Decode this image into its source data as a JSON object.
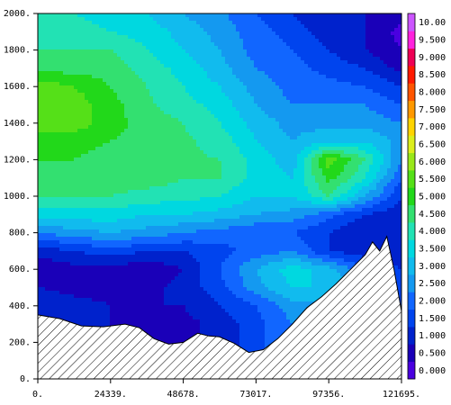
{
  "chart_data": {
    "type": "heatmap",
    "title": "",
    "xlabel": "",
    "ylabel": "",
    "xlim": [
      0,
      121695
    ],
    "ylim": [
      0,
      2000
    ],
    "x_ticks": [
      {
        "value": 0,
        "label": "0."
      },
      {
        "value": 24339,
        "label": "24339."
      },
      {
        "value": 48678,
        "label": "48678."
      },
      {
        "value": 73017,
        "label": "73017."
      },
      {
        "value": 97356,
        "label": "97356."
      },
      {
        "value": 121695,
        "label": "121695."
      }
    ],
    "y_ticks": [
      {
        "value": 0,
        "label": "0."
      },
      {
        "value": 200,
        "label": "200."
      },
      {
        "value": 400,
        "label": "400."
      },
      {
        "value": 600,
        "label": "600."
      },
      {
        "value": 800,
        "label": "800."
      },
      {
        "value": 1000,
        "label": "1000."
      },
      {
        "value": 1200,
        "label": "1200."
      },
      {
        "value": 1400,
        "label": "1400."
      },
      {
        "value": 1600,
        "label": "1600."
      },
      {
        "value": 1800,
        "label": "1800."
      },
      {
        "value": 2000,
        "label": "2000."
      }
    ],
    "colorbar": {
      "levels": [
        "0.000",
        "0.500",
        "1.000",
        "1.500",
        "2.000",
        "2.500",
        "3.000",
        "3.500",
        "4.000",
        "4.500",
        "5.000",
        "5.500",
        "6.000",
        "6.500",
        "7.000",
        "7.500",
        "8.000",
        "8.500",
        "9.000",
        "9.500",
        "10.00"
      ],
      "colors": [
        "#4a00e0",
        "#1a00b8",
        "#0022cc",
        "#0044ee",
        "#1166ff",
        "#1499f0",
        "#11bbee",
        "#00d8e0",
        "#22e2b4",
        "#33e070",
        "#22d81a",
        "#55e018",
        "#99e81a",
        "#dcee1c",
        "#ffd400",
        "#ff9900",
        "#ff5500",
        "#ff1a00",
        "#ee0055",
        "#ff22dd",
        "#cc55ff"
      ]
    },
    "topography": [
      [
        0,
        350
      ],
      [
        7300,
        330
      ],
      [
        14600,
        290
      ],
      [
        21900,
        285
      ],
      [
        29200,
        300
      ],
      [
        34000,
        280
      ],
      [
        38900,
        220
      ],
      [
        43800,
        190
      ],
      [
        48700,
        200
      ],
      [
        53500,
        250
      ],
      [
        57200,
        235
      ],
      [
        60800,
        230
      ],
      [
        65700,
        195
      ],
      [
        70600,
        145
      ],
      [
        75500,
        160
      ],
      [
        80300,
        220
      ],
      [
        85200,
        300
      ],
      [
        90100,
        390
      ],
      [
        95000,
        450
      ],
      [
        99800,
        520
      ],
      [
        104700,
        600
      ],
      [
        109600,
        680
      ],
      [
        112000,
        750
      ],
      [
        114400,
        700
      ],
      [
        116800,
        780
      ],
      [
        119200,
        600
      ],
      [
        121695,
        370
      ]
    ],
    "field": {
      "x": [
        0,
        12170,
        24339,
        36509,
        48678,
        60848,
        73017,
        85187,
        97356,
        109526,
        121695
      ],
      "y": [
        300,
        400,
        500,
        600,
        700,
        800,
        900,
        1000,
        1100,
        1200,
        1300,
        1400,
        1500,
        1600,
        1700,
        1800,
        1900,
        2000
      ],
      "z": [
        [
          1.5,
          1.2,
          1.0,
          0.8,
          0.8,
          1.2,
          1.8,
          2.5,
          2.5,
          2.5,
          2.5
        ],
        [
          1.5,
          1.2,
          1.0,
          1.0,
          1.0,
          1.5,
          2.0,
          2.8,
          3.0,
          3.0,
          2.0
        ],
        [
          1.0,
          0.8,
          0.8,
          0.8,
          1.2,
          1.8,
          2.8,
          3.5,
          3.5,
          3.0,
          1.8
        ],
        [
          0.6,
          0.8,
          0.8,
          0.6,
          1.0,
          2.0,
          3.0,
          3.8,
          3.2,
          2.0,
          1.5
        ],
        [
          1.2,
          1.5,
          1.8,
          1.5,
          1.5,
          1.8,
          2.2,
          2.5,
          1.5,
          1.2,
          1.0
        ],
        [
          2.5,
          2.8,
          3.0,
          2.8,
          2.5,
          2.3,
          2.0,
          2.0,
          1.5,
          1.0,
          1.0
        ],
        [
          3.8,
          3.8,
          3.8,
          3.5,
          3.5,
          3.3,
          3.0,
          2.8,
          2.2,
          1.5,
          1.2
        ],
        [
          4.5,
          4.5,
          4.5,
          4.3,
          4.2,
          4.0,
          3.5,
          3.5,
          4.5,
          3.0,
          1.5
        ],
        [
          4.8,
          4.8,
          4.8,
          4.8,
          4.5,
          4.5,
          3.8,
          3.5,
          5.2,
          4.0,
          2.0
        ],
        [
          5.0,
          5.0,
          4.8,
          4.8,
          4.6,
          4.5,
          3.8,
          3.2,
          5.8,
          4.5,
          2.5
        ],
        [
          5.3,
          5.2,
          5.0,
          4.8,
          4.6,
          4.3,
          3.5,
          3.0,
          3.5,
          3.5,
          2.8
        ],
        [
          5.8,
          5.8,
          5.2,
          4.8,
          4.5,
          4.0,
          3.3,
          2.8,
          2.8,
          2.8,
          2.5
        ],
        [
          6.0,
          5.8,
          5.2,
          4.6,
          4.2,
          3.8,
          3.0,
          2.5,
          2.5,
          2.5,
          2.0
        ],
        [
          5.8,
          5.5,
          5.0,
          4.5,
          4.0,
          3.5,
          2.8,
          2.3,
          2.2,
          2.0,
          1.5
        ],
        [
          4.8,
          4.8,
          4.8,
          4.3,
          3.8,
          3.2,
          2.5,
          2.2,
          1.8,
          1.5,
          0.8
        ],
        [
          4.5,
          4.5,
          4.5,
          4.0,
          3.5,
          3.0,
          2.3,
          2.0,
          1.5,
          1.0,
          0.5
        ],
        [
          4.2,
          4.2,
          4.0,
          3.8,
          3.3,
          2.8,
          2.2,
          1.8,
          1.2,
          1.0,
          0.3
        ],
        [
          4.0,
          4.0,
          3.8,
          3.5,
          3.0,
          2.6,
          2.0,
          1.5,
          1.0,
          1.0,
          0.8
        ]
      ]
    }
  }
}
